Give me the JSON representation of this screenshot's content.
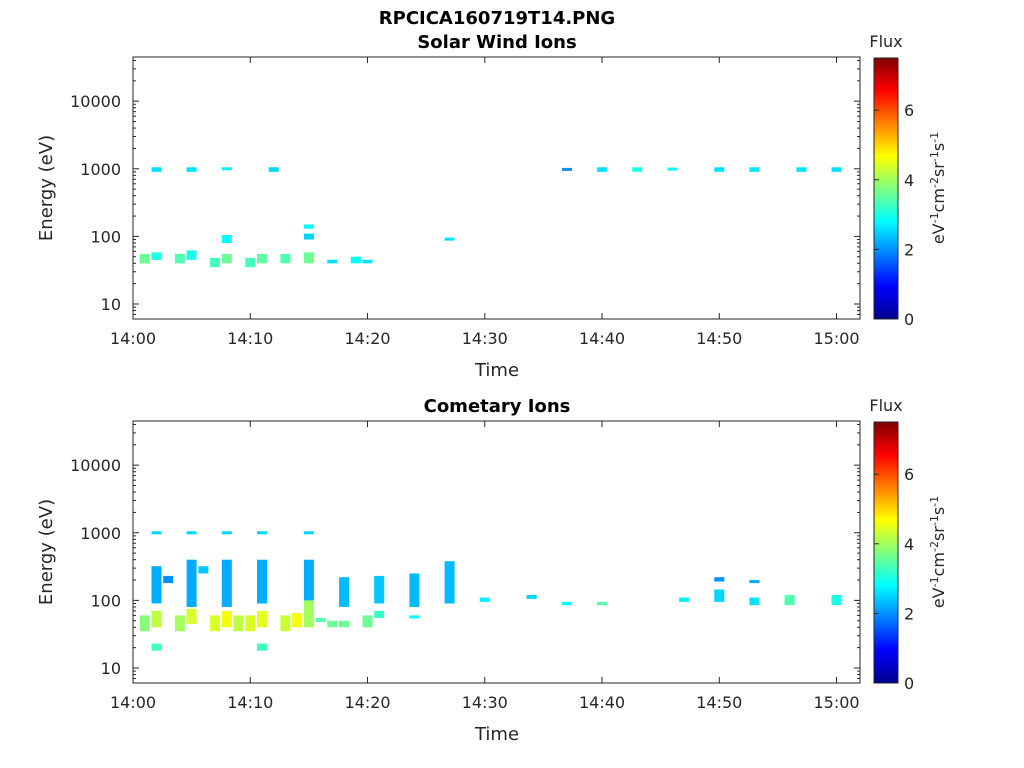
{
  "figure": {
    "title": "RPCICA160719T14.PNG"
  },
  "colors": {
    "colormap": [
      "#00008f",
      "#0000ff",
      "#0080ff",
      "#00ffff",
      "#80ff80",
      "#ffff00",
      "#ff8000",
      "#ff0000",
      "#800000"
    ],
    "axis": "#262626"
  },
  "chart_data": [
    {
      "type": "heatmap",
      "title": "Solar Wind Ions",
      "xlabel": "Time",
      "ylabel": "Energy (eV)",
      "y_scale": "log",
      "ylim": [
        6,
        45000
      ],
      "xlim": [
        "14:00",
        "15:02"
      ],
      "x_ticks": [
        "14:00",
        "14:10",
        "14:20",
        "14:30",
        "14:40",
        "14:50",
        "15:00"
      ],
      "y_ticks": [
        "10",
        "100",
        "1000",
        "10000"
      ],
      "colorbar": {
        "title": "Flux",
        "label": "eV-1cm-2sr-1s-1",
        "range": [
          0,
          7.5
        ],
        "ticks": [
          "0",
          "2",
          "4",
          "6"
        ]
      },
      "cells": [
        {
          "t": "14:01",
          "e": [
            40,
            55
          ],
          "v": 3.6
        },
        {
          "t": "14:02",
          "e": [
            45,
            58
          ],
          "v": 3.0
        },
        {
          "t": "14:02",
          "e": [
            900,
            1050
          ],
          "v": 2.6
        },
        {
          "t": "14:04",
          "e": [
            40,
            55
          ],
          "v": 3.4
        },
        {
          "t": "14:05",
          "e": [
            45,
            62
          ],
          "v": 3.0
        },
        {
          "t": "14:05",
          "e": [
            900,
            1050
          ],
          "v": 2.6
        },
        {
          "t": "14:07",
          "e": [
            35,
            48
          ],
          "v": 3.3
        },
        {
          "t": "14:08",
          "e": [
            40,
            55
          ],
          "v": 3.6
        },
        {
          "t": "14:08",
          "e": [
            80,
            105
          ],
          "v": 2.8
        },
        {
          "t": "14:08",
          "e": [
            950,
            1050
          ],
          "v": 2.7
        },
        {
          "t": "14:10",
          "e": [
            35,
            48
          ],
          "v": 3.3
        },
        {
          "t": "14:11",
          "e": [
            40,
            55
          ],
          "v": 3.5
        },
        {
          "t": "14:12",
          "e": [
            900,
            1050
          ],
          "v": 2.5
        },
        {
          "t": "14:13",
          "e": [
            40,
            55
          ],
          "v": 3.4
        },
        {
          "t": "14:15",
          "e": [
            40,
            58
          ],
          "v": 3.6
        },
        {
          "t": "14:15",
          "e": [
            90,
            110
          ],
          "v": 2.5
        },
        {
          "t": "14:15",
          "e": [
            130,
            150
          ],
          "v": 2.8
        },
        {
          "t": "14:17",
          "e": [
            40,
            45
          ],
          "v": 2.6
        },
        {
          "t": "14:19",
          "e": [
            40,
            50
          ],
          "v": 2.8
        },
        {
          "t": "14:20",
          "e": [
            40,
            45
          ],
          "v": 2.6
        },
        {
          "t": "14:27",
          "e": [
            88,
            96
          ],
          "v": 2.6
        },
        {
          "t": "14:37",
          "e": [
            980,
            1030
          ],
          "v": 2.0
        },
        {
          "t": "14:40",
          "e": [
            900,
            1050
          ],
          "v": 2.6
        },
        {
          "t": "14:43",
          "e": [
            900,
            1050
          ],
          "v": 3.0
        },
        {
          "t": "14:46",
          "e": [
            950,
            1040
          ],
          "v": 2.8
        },
        {
          "t": "14:50",
          "e": [
            900,
            1050
          ],
          "v": 2.6
        },
        {
          "t": "14:53",
          "e": [
            900,
            1050
          ],
          "v": 2.6
        },
        {
          "t": "14:57",
          "e": [
            900,
            1050
          ],
          "v": 2.6
        },
        {
          "t": "15:00",
          "e": [
            900,
            1050
          ],
          "v": 2.6
        }
      ]
    },
    {
      "type": "heatmap",
      "title": "Cometary Ions",
      "xlabel": "Time",
      "ylabel": "Energy (eV)",
      "y_scale": "log",
      "ylim": [
        6,
        45000
      ],
      "xlim": [
        "14:00",
        "15:02"
      ],
      "x_ticks": [
        "14:00",
        "14:10",
        "14:20",
        "14:30",
        "14:40",
        "14:50",
        "15:00"
      ],
      "y_ticks": [
        "10",
        "100",
        "1000",
        "10000"
      ],
      "colorbar": {
        "title": "Flux",
        "label": "eV-1cm-2sr-1s-1",
        "range": [
          0,
          7.5
        ],
        "ticks": [
          "0",
          "2",
          "4",
          "6"
        ]
      },
      "cells": [
        {
          "t": "14:01",
          "e": [
            35,
            60
          ],
          "v": 3.8
        },
        {
          "t": "14:02",
          "e": [
            40,
            70
          ],
          "v": 4.2
        },
        {
          "t": "14:02",
          "e": [
            90,
            320
          ],
          "v": 2.2
        },
        {
          "t": "14:02",
          "e": [
            18,
            23
          ],
          "v": 3.3
        },
        {
          "t": "14:02",
          "e": [
            950,
            1050
          ],
          "v": 2.5
        },
        {
          "t": "14:03",
          "e": [
            180,
            230
          ],
          "v": 2.0
        },
        {
          "t": "14:04",
          "e": [
            35,
            60
          ],
          "v": 4.0
        },
        {
          "t": "14:05",
          "e": [
            45,
            75
          ],
          "v": 4.4
        },
        {
          "t": "14:05",
          "e": [
            80,
            400
          ],
          "v": 2.2
        },
        {
          "t": "14:05",
          "e": [
            950,
            1050
          ],
          "v": 2.5
        },
        {
          "t": "14:06",
          "e": [
            250,
            320
          ],
          "v": 2.4
        },
        {
          "t": "14:07",
          "e": [
            35,
            60
          ],
          "v": 4.4
        },
        {
          "t": "14:08",
          "e": [
            40,
            70
          ],
          "v": 4.6
        },
        {
          "t": "14:08",
          "e": [
            80,
            400
          ],
          "v": 2.2
        },
        {
          "t": "14:08",
          "e": [
            950,
            1050
          ],
          "v": 2.5
        },
        {
          "t": "14:09",
          "e": [
            35,
            60
          ],
          "v": 4.2
        },
        {
          "t": "14:10",
          "e": [
            35,
            60
          ],
          "v": 4.4
        },
        {
          "t": "14:11",
          "e": [
            40,
            70
          ],
          "v": 4.5
        },
        {
          "t": "14:11",
          "e": [
            90,
            400
          ],
          "v": 2.2
        },
        {
          "t": "14:11",
          "e": [
            18,
            23
          ],
          "v": 3.3
        },
        {
          "t": "14:11",
          "e": [
            950,
            1050
          ],
          "v": 2.5
        },
        {
          "t": "14:13",
          "e": [
            35,
            60
          ],
          "v": 4.3
        },
        {
          "t": "14:14",
          "e": [
            40,
            65
          ],
          "v": 4.6
        },
        {
          "t": "14:15",
          "e": [
            40,
            100
          ],
          "v": 4.0
        },
        {
          "t": "14:15",
          "e": [
            100,
            400
          ],
          "v": 2.2
        },
        {
          "t": "14:15",
          "e": [
            950,
            1050
          ],
          "v": 2.5
        },
        {
          "t": "14:16",
          "e": [
            48,
            55
          ],
          "v": 3.4
        },
        {
          "t": "14:17",
          "e": [
            40,
            50
          ],
          "v": 3.6
        },
        {
          "t": "14:18",
          "e": [
            40,
            50
          ],
          "v": 3.6
        },
        {
          "t": "14:18",
          "e": [
            80,
            220
          ],
          "v": 2.3
        },
        {
          "t": "14:20",
          "e": [
            40,
            60
          ],
          "v": 3.6
        },
        {
          "t": "14:21",
          "e": [
            55,
            70
          ],
          "v": 3.2
        },
        {
          "t": "14:21",
          "e": [
            90,
            230
          ],
          "v": 2.4
        },
        {
          "t": "14:24",
          "e": [
            80,
            250
          ],
          "v": 2.3
        },
        {
          "t": "14:24",
          "e": [
            55,
            60
          ],
          "v": 2.8
        },
        {
          "t": "14:27",
          "e": [
            90,
            380
          ],
          "v": 2.3
        },
        {
          "t": "14:30",
          "e": [
            95,
            110
          ],
          "v": 2.7
        },
        {
          "t": "14:34",
          "e": [
            105,
            120
          ],
          "v": 2.5
        },
        {
          "t": "14:37",
          "e": [
            85,
            95
          ],
          "v": 2.8
        },
        {
          "t": "14:40",
          "e": [
            85,
            95
          ],
          "v": 3.4
        },
        {
          "t": "14:47",
          "e": [
            95,
            110
          ],
          "v": 2.7
        },
        {
          "t": "14:50",
          "e": [
            190,
            220
          ],
          "v": 2.0
        },
        {
          "t": "14:50",
          "e": [
            95,
            145
          ],
          "v": 2.5
        },
        {
          "t": "14:53",
          "e": [
            180,
            200
          ],
          "v": 2.2
        },
        {
          "t": "14:53",
          "e": [
            85,
            110
          ],
          "v": 2.6
        },
        {
          "t": "14:56",
          "e": [
            85,
            120
          ],
          "v": 3.4
        },
        {
          "t": "15:00",
          "e": [
            85,
            120
          ],
          "v": 3.0
        }
      ]
    }
  ]
}
